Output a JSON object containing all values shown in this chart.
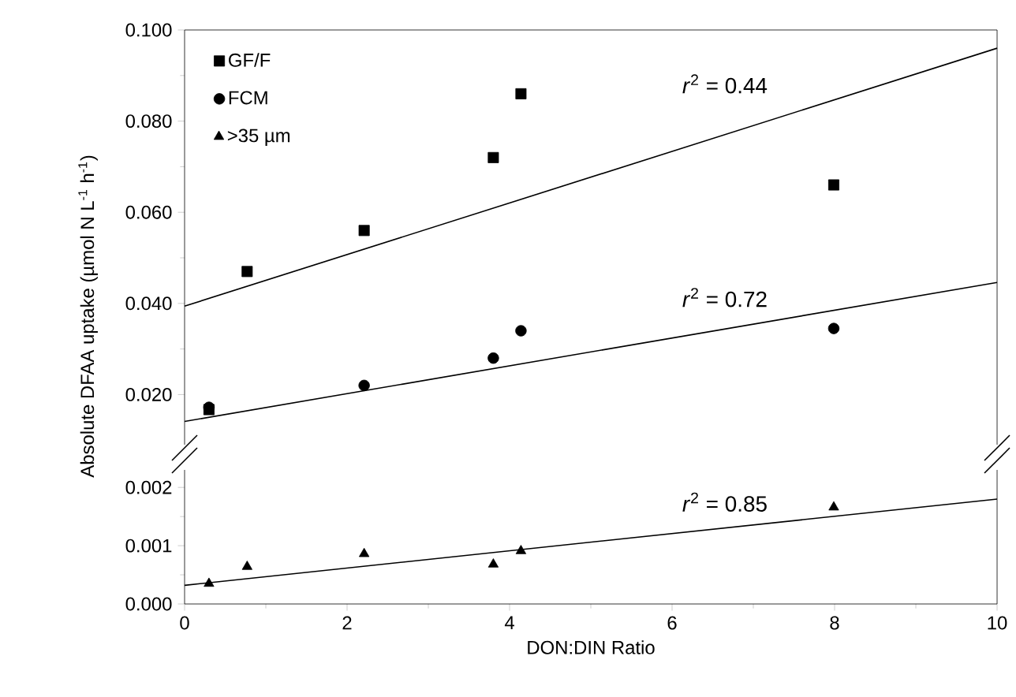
{
  "chart_data": [
    {
      "type": "scatter",
      "ylabel": "Absolute DFAA uptake (µmol N L$^{-1}$ h$^{-1}$)",
      "xlim": [
        0,
        10
      ],
      "ylim": [
        0.009,
        0.1
      ],
      "yticks": [
        {
          "value": 0.02,
          "label": "0.020"
        },
        {
          "value": 0.04,
          "label": "0.040"
        },
        {
          "value": 0.06,
          "label": "0.060"
        },
        {
          "value": 0.08,
          "label": "0.080"
        },
        {
          "value": 0.1,
          "label": "0.100"
        }
      ],
      "tick_labels": "y",
      "legend": "top left",
      "grid": false,
      "series": [
        {
          "name": "GF/F",
          "color": "#000000",
          "marker": "square",
          "x": [
            0.3,
            0.77,
            2.21,
            3.8,
            4.14,
            7.99
          ],
          "values": [
            0.0167,
            0.047,
            0.056,
            0.072,
            0.086,
            0.066
          ]
        },
        {
          "name": "FCM",
          "color": "#000000",
          "marker": "circle",
          "x": [
            0.3,
            2.21,
            3.8,
            4.14,
            7.99
          ],
          "values": [
            0.0172,
            0.022,
            0.028,
            0.034,
            0.0345
          ]
        },
        {
          "type": "line",
          "color": "#000000",
          "x": [
            0,
            10
          ],
          "values": [
            0.0394,
            0.096
          ]
        },
        {
          "type": "line",
          "color": "#000000",
          "x": [
            0,
            10
          ],
          "values": [
            0.0141,
            0.0446
          ]
        }
      ],
      "annotations": [
        "*r*$^{2}$ = 0.44",
        "*r*$^{2}$ = 0.72"
      ]
    },
    {
      "type": "scatter",
      "xlabel": "DON:DIN Ratio",
      "xlim": [
        0,
        10
      ],
      "xticks": [
        0,
        2,
        4,
        6,
        8,
        10
      ],
      "ylim": [
        0,
        0.0023
      ],
      "legend": "top left",
      "yticks": [
        {
          "value": 0,
          "label": "0.000"
        },
        {
          "value": 0.001,
          "label": "0.001"
        },
        {
          "value": 0.002,
          "label": "0.002"
        }
      ],
      "grid": false,
      "series": [
        {
          "name": ">35 µm",
          "color": "#000000",
          "marker": "triangle",
          "x": [
            0.3,
            0.77,
            2.21,
            3.8,
            4.14,
            7.99
          ],
          "values": [
            0.00035,
            0.00064,
            0.00086,
            0.00068,
            0.00091,
            0.00166
          ]
        },
        {
          "type": "line",
          "color": "#000000",
          "x": [
            0,
            10
          ],
          "values": [
            0.00032,
            0.0018
          ]
        }
      ],
      "annotations": [
        "*r*$^{2}$ = 0.85"
      ]
    }
  ]
}
